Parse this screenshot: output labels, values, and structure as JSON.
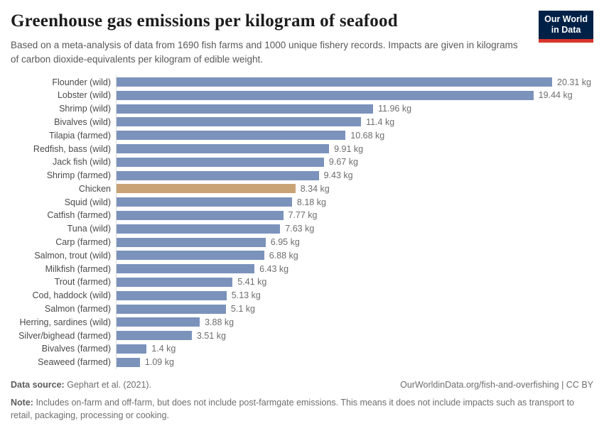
{
  "header": {
    "title": "Greenhouse gas emissions per kilogram of seafood",
    "subtitle": "Based on a meta-analysis of data from 1690 fish farms and 1000 unique fishery records. Impacts are given in kilograms of carbon dioxide-equivalents per kilogram of edible weight.",
    "logo_line1": "Our World",
    "logo_line2": "in Data",
    "logo_bg_color": "#002147",
    "logo_accent_color": "#d8352b"
  },
  "chart_data": {
    "type": "bar",
    "orientation": "horizontal",
    "title": "Greenhouse gas emissions per kilogram of seafood",
    "unit": "kg",
    "xlim": [
      0,
      20.31
    ],
    "grid": false,
    "legend": "none",
    "categories": [
      "Flounder (wild)",
      "Lobster (wild)",
      "Shrimp (wild)",
      "Bivalves (wild)",
      "Tilapia (farmed)",
      "Redfish, bass (wild)",
      "Jack fish (wild)",
      "Shrimp (farmed)",
      "Chicken",
      "Squid (wild)",
      "Catfish (farmed)",
      "Tuna (wild)",
      "Carp (farmed)",
      "Salmon, trout (wild)",
      "Milkfish (farmed)",
      "Trout (farmed)",
      "Cod, haddock (wild)",
      "Salmon (farmed)",
      "Herring, sardines (wild)",
      "Silver/bighead (farmed)",
      "Bivalves (farmed)",
      "Seaweed (farmed)"
    ],
    "values": [
      20.31,
      19.44,
      11.96,
      11.4,
      10.68,
      9.91,
      9.67,
      9.43,
      8.34,
      8.18,
      7.77,
      7.63,
      6.95,
      6.88,
      6.43,
      5.41,
      5.13,
      5.1,
      3.88,
      3.51,
      1.4,
      1.09
    ],
    "bar_color": "#7b92bb",
    "highlight_category": "Chicken",
    "highlight_color": "#c9a276",
    "axis_color": "#dadada"
  },
  "footer": {
    "data_source_label": "Data source:",
    "data_source_value": "Gephart et al. (2021).",
    "attribution": "OurWorldinData.org/fish-and-overfishing | CC BY",
    "note_label": "Note:",
    "note_text": "Includes on-farm and off-farm, but does not include post-farmgate emissions. This means it does not include impacts such as transport to retail, packaging, processing or cooking."
  }
}
